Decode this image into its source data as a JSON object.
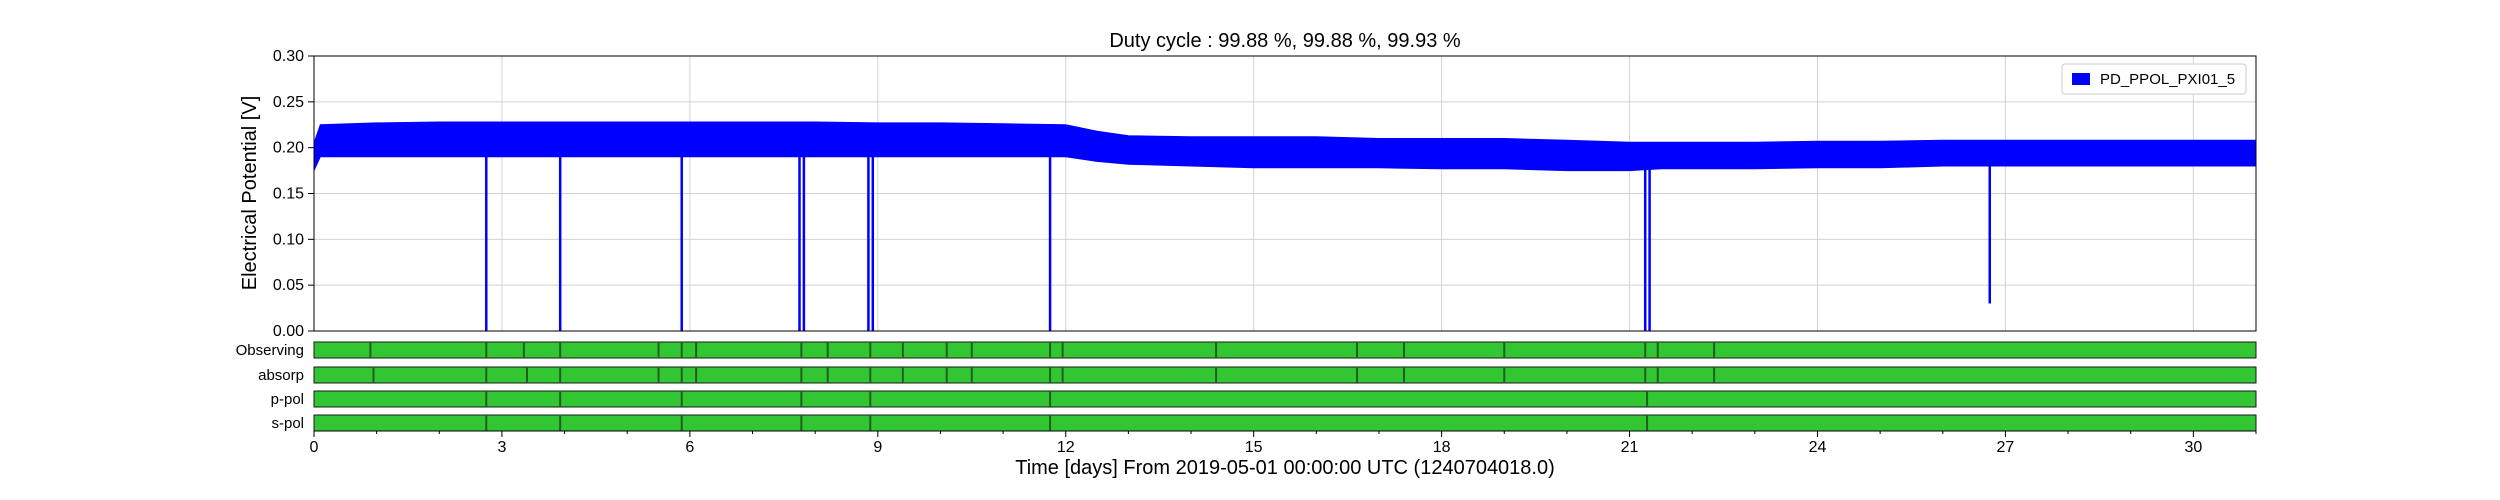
{
  "chart_data": {
    "type": "area",
    "title": "Duty cycle : 99.88 %, 99.88 %, 99.93 %",
    "xlabel": "Time [days] From 2019-05-01 00:00:00 UTC (1240704018.0)",
    "ylabel": "Electrical Potential [V]",
    "xlim": [
      0,
      31
    ],
    "ylim": [
      0,
      0.3
    ],
    "xticks": [
      0,
      3,
      6,
      9,
      12,
      15,
      18,
      21,
      24,
      27,
      30
    ],
    "yticks": [
      0.0,
      0.05,
      0.1,
      0.15,
      0.2,
      0.25,
      0.3
    ],
    "ytick_labels": [
      "0.00",
      "0.05",
      "0.10",
      "0.15",
      "0.20",
      "0.25",
      "0.30"
    ],
    "grid": true,
    "legend_position": "top-right",
    "series": [
      {
        "name": "PD_PPOL_PXI01_5",
        "color": "#0000ff",
        "x": [
          0,
          0.1,
          1,
          2,
          3,
          4,
          5,
          6,
          7,
          8,
          9,
          10,
          11,
          12,
          12.5,
          13,
          14,
          15,
          16,
          17,
          18,
          19,
          20,
          21,
          21.5,
          22,
          23,
          24,
          25,
          26,
          27,
          28,
          29,
          30,
          31
        ],
        "low": [
          0.175,
          0.19,
          0.19,
          0.19,
          0.19,
          0.19,
          0.19,
          0.19,
          0.19,
          0.19,
          0.19,
          0.19,
          0.19,
          0.19,
          0.185,
          0.182,
          0.18,
          0.178,
          0.178,
          0.178,
          0.177,
          0.177,
          0.175,
          0.175,
          0.177,
          0.177,
          0.177,
          0.178,
          0.178,
          0.18,
          0.18,
          0.18,
          0.18,
          0.18,
          0.18
        ],
        "high": [
          0.205,
          0.225,
          0.227,
          0.228,
          0.228,
          0.228,
          0.228,
          0.228,
          0.228,
          0.228,
          0.227,
          0.227,
          0.226,
          0.225,
          0.218,
          0.213,
          0.212,
          0.212,
          0.212,
          0.21,
          0.21,
          0.21,
          0.208,
          0.206,
          0.206,
          0.206,
          0.206,
          0.207,
          0.207,
          0.208,
          0.208,
          0.208,
          0.208,
          0.208,
          0.208
        ],
        "dropouts": [
          {
            "x": 2.75,
            "min": 0.0
          },
          {
            "x": 3.93,
            "min": 0.0
          },
          {
            "x": 5.87,
            "min": 0.0
          },
          {
            "x": 7.75,
            "min": 0.0
          },
          {
            "x": 7.82,
            "min": 0.0
          },
          {
            "x": 8.85,
            "min": 0.0
          },
          {
            "x": 8.92,
            "min": 0.0
          },
          {
            "x": 11.75,
            "min": 0.0
          },
          {
            "x": 21.25,
            "min": 0.0
          },
          {
            "x": 21.32,
            "min": 0.0
          },
          {
            "x": 26.75,
            "min": 0.03
          }
        ]
      }
    ],
    "segments": [
      {
        "label": "Observing",
        "color": "#33c633",
        "breaks": [
          0.9,
          2.75,
          3.35,
          3.93,
          5.5,
          5.87,
          6.1,
          7.78,
          8.2,
          8.88,
          9.4,
          10.1,
          10.5,
          11.75,
          11.95,
          14.4,
          16.65,
          17.4,
          19.0,
          21.25,
          21.45,
          22.35
        ]
      },
      {
        "label": "absorp",
        "color": "#33c633",
        "breaks": [
          0.95,
          2.75,
          3.4,
          3.93,
          5.5,
          5.87,
          6.1,
          7.78,
          8.2,
          8.88,
          9.4,
          10.1,
          10.5,
          11.75,
          11.95,
          14.4,
          16.65,
          17.4,
          19.0,
          21.25,
          21.45,
          22.35
        ]
      },
      {
        "label": "p-pol",
        "color": "#33c633",
        "breaks": [
          2.75,
          3.93,
          5.87,
          7.78,
          8.88,
          11.75,
          21.28
        ]
      },
      {
        "label": "s-pol",
        "color": "#33c633",
        "breaks": [
          2.75,
          3.93,
          5.87,
          7.78,
          8.88,
          11.75,
          21.28
        ]
      }
    ]
  }
}
